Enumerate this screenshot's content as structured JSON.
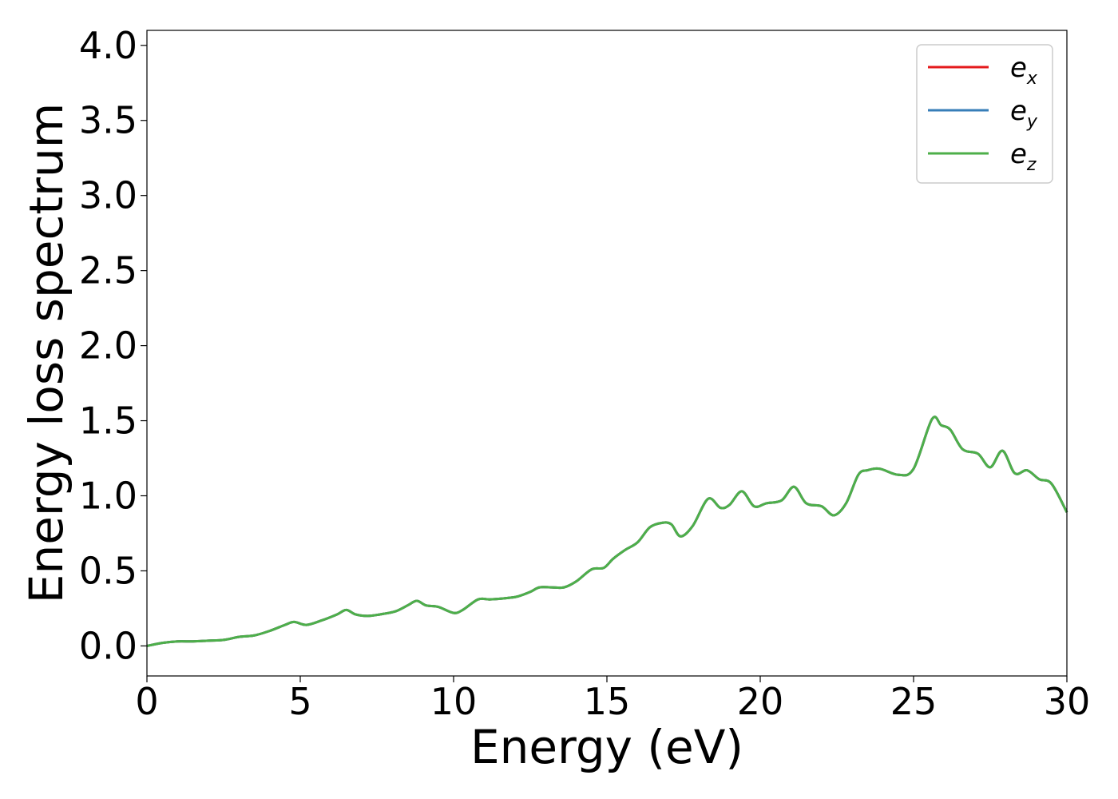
{
  "chart_data": {
    "type": "line",
    "xlabel": "Energy (eV)",
    "ylabel": "Energy loss spectrum",
    "xlim": [
      0,
      30
    ],
    "ylim": [
      -0.2,
      4.1
    ],
    "xticks": [
      "0",
      "5",
      "10",
      "15",
      "20",
      "25",
      "30"
    ],
    "yticks": [
      "0.0",
      "0.5",
      "1.0",
      "1.5",
      "2.0",
      "2.5",
      "3.0",
      "3.5",
      "4.0"
    ],
    "grid": false,
    "legend_position": "top-right",
    "series": [
      {
        "name": "e_x",
        "label_base": "e",
        "label_sub": "x",
        "color": "#e41a1c",
        "x": [
          0,
          0.5,
          1,
          1.5,
          2,
          2.5,
          3,
          3.5,
          4,
          4.5,
          4.8,
          5.2,
          5.7,
          6.2,
          6.5,
          6.8,
          7.2,
          7.6,
          8.1,
          8.5,
          8.8,
          9.1,
          9.5,
          10,
          10.3,
          10.8,
          11.2,
          11.8,
          12.1,
          12.5,
          12.8,
          13.2,
          13.6,
          14,
          14.5,
          14.9,
          15.2,
          15.6,
          16,
          16.4,
          16.8,
          17.1,
          17.4,
          17.8,
          18.3,
          18.7,
          19,
          19.4,
          19.8,
          20.2,
          20.7,
          21.1,
          21.5,
          22,
          22.4,
          22.8,
          23.2,
          23.5,
          23.9,
          24.5,
          25,
          25.6,
          25.9,
          26.2,
          26.6,
          27.1,
          27.5,
          27.9,
          28.3,
          28.7,
          29.1,
          29.5,
          30
        ],
        "y": [
          0,
          0.02,
          0.03,
          0.03,
          0.035,
          0.04,
          0.06,
          0.07,
          0.1,
          0.14,
          0.16,
          0.14,
          0.17,
          0.21,
          0.24,
          0.21,
          0.2,
          0.21,
          0.23,
          0.27,
          0.3,
          0.27,
          0.26,
          0.22,
          0.24,
          0.31,
          0.31,
          0.32,
          0.33,
          0.36,
          0.39,
          0.39,
          0.39,
          0.43,
          0.51,
          0.52,
          0.58,
          0.64,
          0.69,
          0.79,
          0.82,
          0.81,
          0.73,
          0.8,
          0.98,
          0.92,
          0.94,
          1.03,
          0.93,
          0.95,
          0.97,
          1.06,
          0.95,
          0.93,
          0.87,
          0.95,
          1.14,
          1.17,
          1.18,
          1.14,
          1.18,
          1.51,
          1.47,
          1.44,
          1.31,
          1.28,
          1.19,
          1.3,
          1.15,
          1.17,
          1.11,
          1.08,
          0.89
        ]
      },
      {
        "name": "e_y",
        "label_base": "e",
        "label_sub": "y",
        "color": "#377eb8",
        "x": [
          0,
          0.5,
          1,
          1.5,
          2,
          2.5,
          3,
          3.5,
          4,
          4.5,
          4.8,
          5.2,
          5.7,
          6.2,
          6.5,
          6.8,
          7.2,
          7.6,
          8.1,
          8.5,
          8.8,
          9.1,
          9.5,
          10,
          10.3,
          10.8,
          11.2,
          11.8,
          12.1,
          12.5,
          12.8,
          13.2,
          13.6,
          14,
          14.5,
          14.9,
          15.2,
          15.6,
          16,
          16.4,
          16.8,
          17.1,
          17.4,
          17.8,
          18.3,
          18.7,
          19,
          19.4,
          19.8,
          20.2,
          20.7,
          21.1,
          21.5,
          22,
          22.4,
          22.8,
          23.2,
          23.5,
          23.9,
          24.5,
          25,
          25.6,
          25.9,
          26.2,
          26.6,
          27.1,
          27.5,
          27.9,
          28.3,
          28.7,
          29.1,
          29.5,
          30
        ],
        "y": [
          0,
          0.02,
          0.03,
          0.03,
          0.035,
          0.04,
          0.06,
          0.07,
          0.1,
          0.14,
          0.16,
          0.14,
          0.17,
          0.21,
          0.24,
          0.21,
          0.2,
          0.21,
          0.23,
          0.27,
          0.3,
          0.27,
          0.26,
          0.22,
          0.24,
          0.31,
          0.31,
          0.32,
          0.33,
          0.36,
          0.39,
          0.39,
          0.39,
          0.43,
          0.51,
          0.52,
          0.58,
          0.64,
          0.69,
          0.79,
          0.82,
          0.81,
          0.73,
          0.8,
          0.98,
          0.92,
          0.94,
          1.03,
          0.93,
          0.95,
          0.97,
          1.06,
          0.95,
          0.93,
          0.87,
          0.95,
          1.14,
          1.17,
          1.18,
          1.14,
          1.18,
          1.51,
          1.47,
          1.44,
          1.31,
          1.28,
          1.19,
          1.3,
          1.15,
          1.17,
          1.11,
          1.08,
          0.89
        ]
      },
      {
        "name": "e_z",
        "label_base": "e",
        "label_sub": "z",
        "color": "#4daf4a",
        "x": [
          0,
          0.5,
          1,
          1.5,
          2,
          2.5,
          3,
          3.5,
          4,
          4.5,
          4.8,
          5.2,
          5.7,
          6.2,
          6.5,
          6.8,
          7.2,
          7.6,
          8.1,
          8.5,
          8.8,
          9.1,
          9.5,
          10,
          10.3,
          10.8,
          11.2,
          11.8,
          12.1,
          12.5,
          12.8,
          13.2,
          13.6,
          14,
          14.5,
          14.9,
          15.2,
          15.6,
          16,
          16.4,
          16.8,
          17.1,
          17.4,
          17.8,
          18.3,
          18.7,
          19,
          19.4,
          19.8,
          20.2,
          20.7,
          21.1,
          21.5,
          22,
          22.4,
          22.8,
          23.2,
          23.5,
          23.9,
          24.5,
          25,
          25.6,
          25.9,
          26.2,
          26.6,
          27.1,
          27.5,
          27.9,
          28.3,
          28.7,
          29.1,
          29.5,
          30
        ],
        "y": [
          0,
          0.02,
          0.03,
          0.03,
          0.035,
          0.04,
          0.06,
          0.07,
          0.1,
          0.14,
          0.16,
          0.14,
          0.17,
          0.21,
          0.24,
          0.21,
          0.2,
          0.21,
          0.23,
          0.27,
          0.3,
          0.27,
          0.26,
          0.22,
          0.24,
          0.31,
          0.31,
          0.32,
          0.33,
          0.36,
          0.39,
          0.39,
          0.39,
          0.43,
          0.51,
          0.52,
          0.58,
          0.64,
          0.69,
          0.79,
          0.82,
          0.81,
          0.73,
          0.8,
          0.98,
          0.92,
          0.94,
          1.03,
          0.93,
          0.95,
          0.97,
          1.06,
          0.95,
          0.93,
          0.87,
          0.95,
          1.14,
          1.17,
          1.18,
          1.14,
          1.18,
          1.51,
          1.47,
          1.44,
          1.31,
          1.28,
          1.19,
          1.3,
          1.15,
          1.17,
          1.11,
          1.08,
          0.89
        ]
      }
    ]
  }
}
